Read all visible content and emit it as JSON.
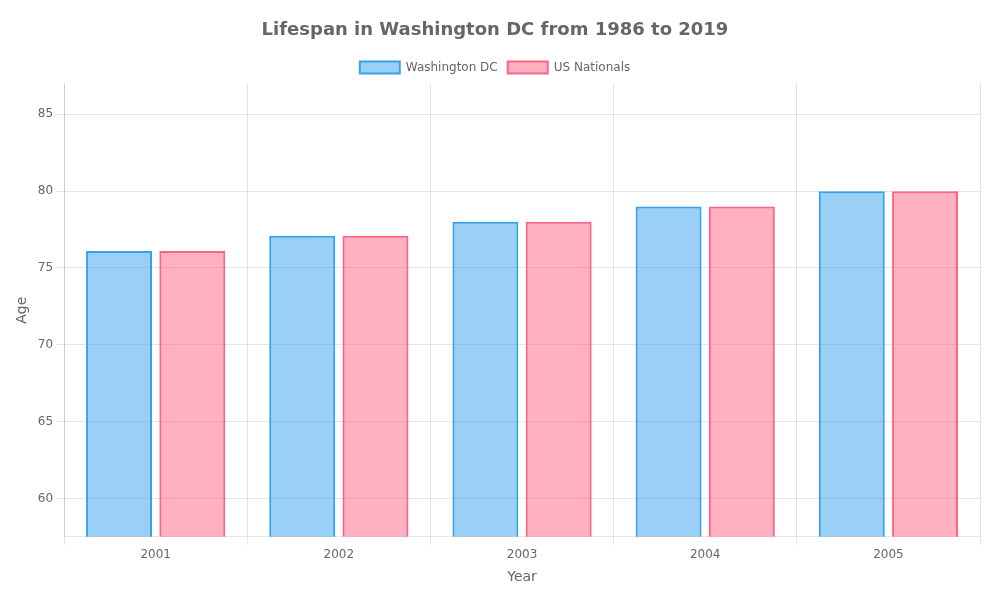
{
  "chart_data": {
    "type": "bar",
    "title": "Lifespan in Washington DC from 1986 to 2019",
    "xlabel": "Year",
    "ylabel": "Age",
    "categories": [
      "2001",
      "2002",
      "2003",
      "2004",
      "2005"
    ],
    "series": [
      {
        "name": "Washington DC",
        "values": [
          76.1,
          77.1,
          78.0,
          79.0,
          80.0
        ]
      },
      {
        "name": "US Nationals",
        "values": [
          76.1,
          77.1,
          78.0,
          79.0,
          80.0
        ]
      }
    ],
    "ylim": [
      57.5,
      87
    ],
    "yticks": [
      60,
      65,
      70,
      75,
      80,
      85
    ],
    "grid": true,
    "legend": "top"
  }
}
